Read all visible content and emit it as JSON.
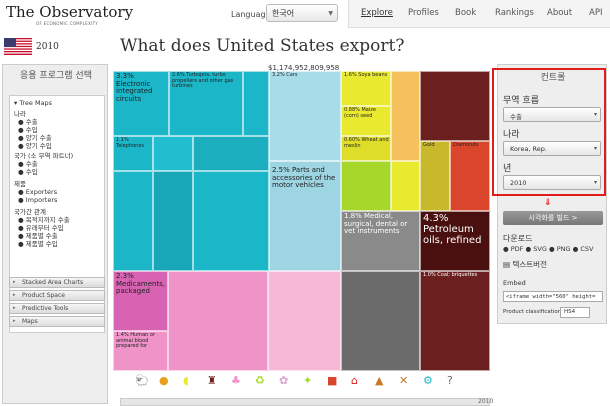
{
  "header": {
    "logo_text": "The Observatory",
    "logo_subtitle": "OF ECONOMIC COMPLEXITY",
    "language_label": "Language:",
    "language_value": "한국어",
    "nav": [
      "Explore",
      "Profiles",
      "Book",
      "Rankings",
      "About",
      "API"
    ]
  },
  "country_year": "2010",
  "page_title": "What does United States export?",
  "total_value": "$1,174,952,809,958",
  "left_panel": {
    "title": "응용 프로그램 선택",
    "tree_header": "Tree Maps",
    "country_label": "나라",
    "country_items": [
      "수출",
      "수입",
      "양기 수출",
      "양기 수입"
    ],
    "country_pair_label": "국가 (소 무역 파트너)",
    "pair_items": [
      "수출",
      "수입"
    ],
    "product_label": "제품",
    "product_items": [
      "Exporters",
      "Importers"
    ],
    "relations_label": "국가간 관계",
    "relations_items": [
      "목적지까지 수출",
      "유래부터 수입",
      "제품별 수출",
      "제품별 수입"
    ],
    "accordions": [
      "Stacked Area Charts",
      "Product Space",
      "Predictive Tools",
      "Maps"
    ]
  },
  "right_panel": {
    "title": "컨트롤",
    "trade_flow_label": "무역 흐름",
    "trade_flow_value": "수출",
    "country_label": "나라",
    "country_value": "Korea, Rep.",
    "year_label": "년",
    "year_value": "2010",
    "build_button": "시각화를 빌드 >",
    "download_label": "다운로드",
    "download_formats": [
      "PDF",
      "SVG",
      "PNG",
      "CSV"
    ],
    "text_version": "텍스트버전",
    "embed_label": "Embed",
    "embed_code": "<iframe width=\"560\" height=",
    "product_class_label": "Product classification:",
    "product_class_value": "HS4"
  },
  "treemap_labels": {
    "electronic": "3.3% Electronic integrated circuits",
    "turbojets": "2.6% Turbojets, turbo propellers and other gas turbines",
    "telephones": "1.1% Telephones",
    "cars": "3.2% Cars",
    "soya": "1.6% Soya beans",
    "maize": "0.88% Maize (corn) seed",
    "wheat": "0.60% Wheat and meslin",
    "motor_parts": "2.5% Parts and accessories of the motor vehicles",
    "medical": "1.8% Medical, surgical, dental or vet instruments",
    "petroleum": "4.3% Petroleum oils, refined",
    "medicaments": "2.3% Medicaments, packaged",
    "blood": "1.4% Human or animal blood prepared for",
    "coal": "1.0% Coal; briquettes",
    "gold": "Gold",
    "diamonds": "Diamonds"
  },
  "colors": {
    "machinery": "#1cb6c9",
    "transport": "#a7dce8",
    "vegetable": "#e9e930",
    "animal": "#f5c15c",
    "chemicals": "#ef93c8",
    "minerals": "#6b1f1f",
    "metals": "#d9462b",
    "instruments": "#8a8a8a",
    "stone": "#c87a2b",
    "highlight_red": "#e21b1b"
  }
}
